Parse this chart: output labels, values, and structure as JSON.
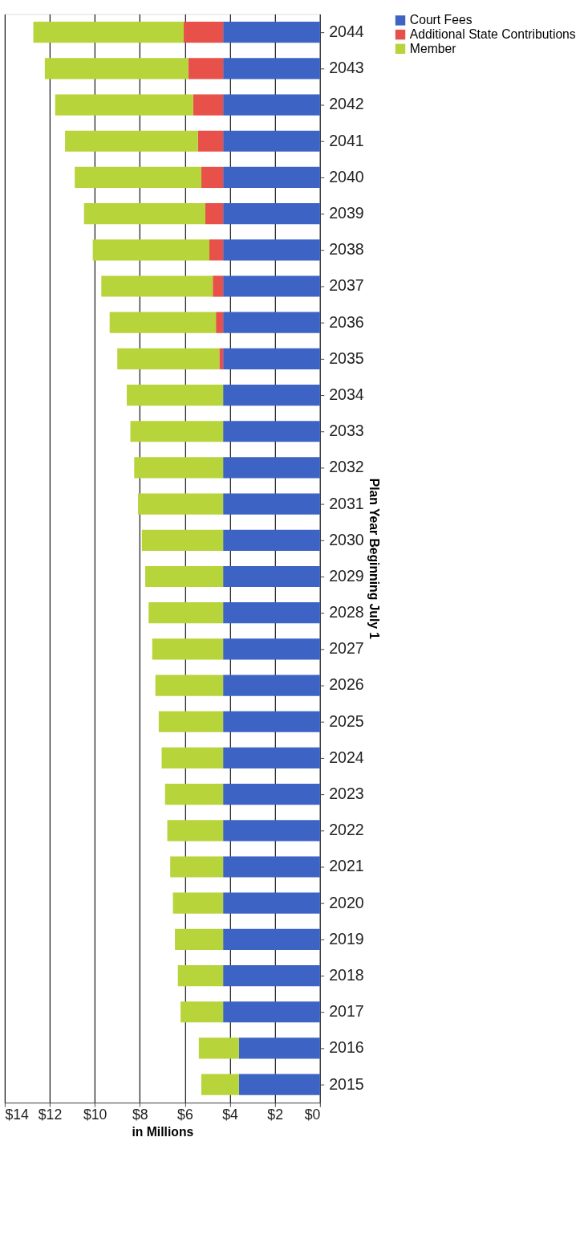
{
  "chart_data": {
    "type": "bar",
    "orientation": "horizontal",
    "stacked": true,
    "xlabel": "in Millions",
    "ylabel": "Plan Year Beginning July 1",
    "categories": [
      "2044",
      "2043",
      "2042",
      "2041",
      "2040",
      "2039",
      "2038",
      "2037",
      "2036",
      "2035",
      "2034",
      "2033",
      "2032",
      "2031",
      "2030",
      "2029",
      "2028",
      "2027",
      "2026",
      "2025",
      "2024",
      "2023",
      "2022",
      "2021",
      "2020",
      "2019",
      "2018",
      "2017",
      "2016",
      "2015"
    ],
    "series": [
      {
        "name": "Court Fees",
        "color": "#3d63c4",
        "values": [
          4.3,
          4.3,
          4.3,
          4.3,
          4.3,
          4.3,
          4.3,
          4.3,
          4.3,
          4.3,
          4.3,
          4.3,
          4.3,
          4.3,
          4.3,
          4.3,
          4.3,
          4.3,
          4.3,
          4.3,
          4.3,
          4.3,
          4.3,
          4.3,
          4.3,
          4.3,
          4.3,
          4.3,
          3.6,
          3.6
        ]
      },
      {
        "name": "Additional State Contributions",
        "color": "#e8504a",
        "values": [
          1.75,
          1.55,
          1.33,
          1.12,
          0.97,
          0.79,
          0.61,
          0.46,
          0.32,
          0.17,
          0,
          0,
          0,
          0,
          0,
          0,
          0,
          0,
          0,
          0,
          0,
          0,
          0,
          0,
          0,
          0,
          0,
          0,
          0,
          0
        ]
      },
      {
        "name": "Member",
        "color": "#b7d43a",
        "values": [
          6.68,
          6.37,
          6.13,
          5.9,
          5.62,
          5.39,
          5.18,
          4.95,
          4.72,
          4.53,
          4.28,
          4.12,
          3.95,
          3.78,
          3.61,
          3.46,
          3.31,
          3.15,
          3.01,
          2.86,
          2.73,
          2.58,
          2.48,
          2.35,
          2.23,
          2.14,
          2.01,
          1.89,
          1.78,
          1.67
        ]
      }
    ],
    "xlim": [
      14,
      0
    ],
    "xticks": [
      {
        "value": 14,
        "label": "$14"
      },
      {
        "value": 12,
        "label": "$12"
      },
      {
        "value": 10,
        "label": "$10"
      },
      {
        "value": 8,
        "label": "$8"
      },
      {
        "value": 6,
        "label": "$6"
      },
      {
        "value": 4,
        "label": "$4"
      },
      {
        "value": 2,
        "label": "$2"
      },
      {
        "value": 0,
        "label": "$0"
      }
    ],
    "grid": "x",
    "legend": "right"
  }
}
